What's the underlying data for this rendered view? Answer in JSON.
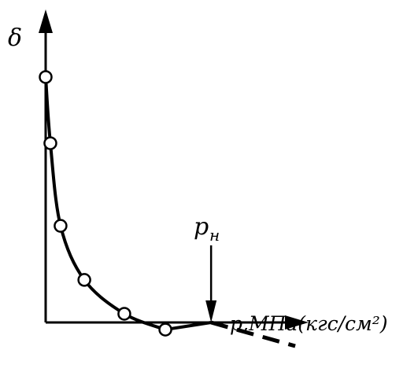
{
  "chart_data": {
    "type": "line",
    "y_label": "δ",
    "x_label": "p,МПа(кгс/см²)",
    "annotation": {
      "text": "p",
      "subscript": "н",
      "x": 63.3
    },
    "xlim": [
      0,
      100
    ],
    "ylim": [
      0,
      100
    ],
    "color": "#000000",
    "series": [
      {
        "x": [
          0,
          1.8,
          5.7,
          14.8,
          30.1,
          45.8
        ],
        "values": [
          79,
          57.7,
          31.1,
          13.7,
          2.8,
          -2.3
        ],
        "markers": true,
        "line": "solid"
      },
      {
        "x": [
          45.8,
          63.3
        ],
        "values": [
          -2.3,
          0
        ],
        "markers": false,
        "line": "solid"
      },
      {
        "x": [
          63.3,
          95.5
        ],
        "values": [
          0,
          -7.6
        ],
        "markers": false,
        "line": "dashed"
      }
    ]
  }
}
